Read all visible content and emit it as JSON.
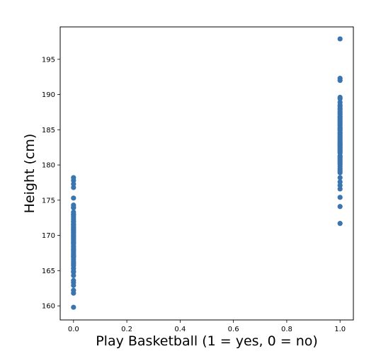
{
  "chart_data": {
    "type": "scatter",
    "title": "",
    "xlabel": "Play Basketball (1 = yes, 0 = no)",
    "ylabel": "Height (cm)",
    "xlim": [
      -0.05,
      1.05
    ],
    "ylim": [
      158,
      199.6
    ],
    "xticks": [
      0.0,
      0.2,
      0.4,
      0.6,
      0.8,
      1.0
    ],
    "xtick_labels": [
      "0.0",
      "0.2",
      "0.4",
      "0.6",
      "0.8",
      "1.0"
    ],
    "yticks": [
      160,
      165,
      170,
      175,
      180,
      185,
      190,
      195
    ],
    "ytick_labels": [
      "160",
      "165",
      "170",
      "175",
      "180",
      "185",
      "190",
      "195"
    ],
    "grid": false,
    "marker_color": "#3a75af",
    "series": [
      {
        "x": [
          0,
          0,
          0,
          0,
          0,
          0,
          0,
          0,
          0,
          0,
          0,
          0,
          0,
          0,
          0,
          0,
          0,
          0,
          0,
          0,
          0,
          0,
          0,
          0,
          0,
          0,
          0,
          0,
          0,
          0,
          0,
          0,
          0,
          0,
          0,
          0,
          0,
          0,
          0,
          0,
          0,
          0,
          0,
          0,
          0,
          0,
          0,
          0,
          0,
          0,
          0,
          0,
          0,
          0,
          0,
          0,
          0,
          0,
          0,
          0,
          0
        ],
        "y": [
          159.8,
          161.8,
          162.2,
          162.9,
          163.3,
          164.3,
          164.8,
          165.3,
          165.7,
          166.1,
          166.6,
          167.0,
          167.3,
          167.7,
          167.9,
          168.2,
          168.5,
          168.8,
          169.0,
          169.3,
          169.6,
          169.9,
          170.2,
          170.5,
          170.8,
          171.0,
          171.3,
          171.6,
          172.0,
          172.3,
          172.9,
          173.3,
          173.9,
          174.3,
          175.3,
          176.8,
          177.3,
          177.8,
          178.2,
          168.4,
          169.1,
          170.0,
          171.1,
          166.9,
          164.9,
          172.6,
          169.4,
          167.5,
          170.4,
          165.9,
          168.0,
          171.9,
          173.0,
          169.7,
          166.3,
          170.7,
          167.1,
          168.9,
          171.5,
          163.6,
          174.0
        ],
        "name": ""
      },
      {
        "x": [
          1,
          1,
          1,
          1,
          1,
          1,
          1,
          1,
          1,
          1,
          1,
          1,
          1,
          1,
          1,
          1,
          1,
          1,
          1,
          1,
          1,
          1,
          1,
          1,
          1,
          1,
          1,
          1,
          1,
          1,
          1,
          1,
          1,
          1,
          1,
          1,
          1,
          1,
          1,
          1,
          1,
          1,
          1,
          1,
          1,
          1,
          1,
          1,
          1,
          1,
          1,
          1,
          1,
          1,
          1,
          1,
          1,
          1,
          1,
          1,
          1
        ],
        "y": [
          171.7,
          174.1,
          175.4,
          176.6,
          177.1,
          177.6,
          178.9,
          179.3,
          179.8,
          180.1,
          180.5,
          180.9,
          181.3,
          181.7,
          182.0,
          182.4,
          182.8,
          183.1,
          183.5,
          183.9,
          184.3,
          184.6,
          185.0,
          185.3,
          185.6,
          186.0,
          186.4,
          186.8,
          187.2,
          187.6,
          188.0,
          188.3,
          188.9,
          189.4,
          189.6,
          192.0,
          192.3,
          197.9,
          178.2,
          181.1,
          183.3,
          185.8,
          187.4,
          182.6,
          184.1,
          186.6,
          179.5,
          180.7,
          182.2,
          184.9,
          186.2,
          188.5,
          181.9,
          183.7,
          185.2,
          187.9,
          180.3,
          182.9,
          184.5,
          179.1,
          186.9
        ],
        "name": ""
      }
    ]
  }
}
